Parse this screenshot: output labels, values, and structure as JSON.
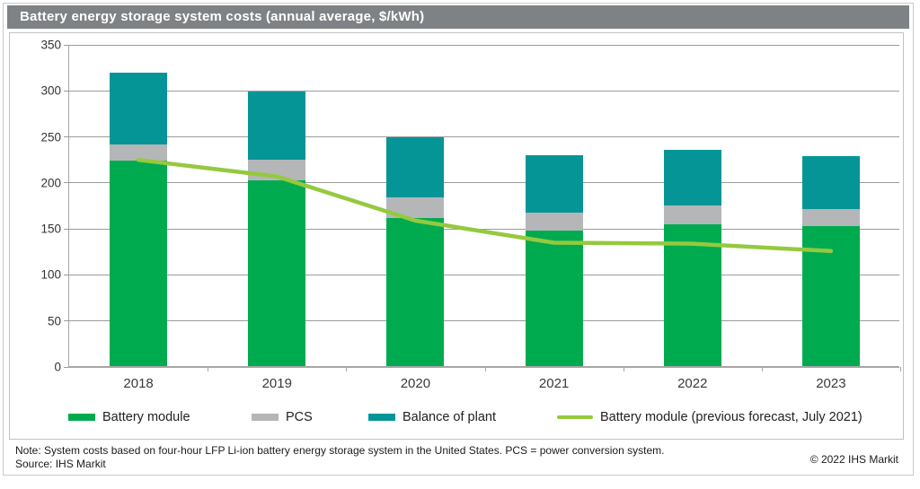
{
  "title": "Battery energy storage system costs (annual average, $/kWh)",
  "chart_data": {
    "type": "bar",
    "stacked": true,
    "title": "Battery energy storage system costs (annual average, $/kWh)",
    "categories": [
      "2018",
      "2019",
      "2020",
      "2021",
      "2022",
      "2023"
    ],
    "series": [
      {
        "name": "Battery module",
        "color": "#00ab50",
        "values": [
          224,
          203,
          162,
          148,
          155,
          153
        ]
      },
      {
        "name": "PCS",
        "color": "#b5b6b8",
        "values": [
          18,
          22,
          22,
          20,
          21,
          19
        ]
      },
      {
        "name": "Balance of plant",
        "color": "#069597",
        "values": [
          78,
          74,
          66,
          62,
          60,
          57
        ]
      }
    ],
    "line_series": {
      "name": "Battery module (previous forecast, July 2021)",
      "color": "#95c93e",
      "values": [
        225,
        207,
        159,
        135,
        134,
        126
      ]
    },
    "totals": [
      320,
      299,
      250,
      230,
      236,
      229
    ],
    "xlabel": "",
    "ylabel": "",
    "ylim": [
      0,
      350
    ],
    "yticks": [
      350,
      300,
      250,
      200,
      150,
      100,
      50,
      0
    ],
    "grid": true,
    "legend_position": "bottom"
  },
  "colors": {
    "title_bar": "#7f8285",
    "gridline": "#9b9b9b",
    "axis": "#a6a6a6"
  },
  "footer": {
    "note": "Note: System costs based on four-hour LFP Li-ion battery energy storage system in the United States. PCS = power conversion system.",
    "source": "Source: IHS Markit",
    "copyright": "© 2022 IHS Markit"
  }
}
